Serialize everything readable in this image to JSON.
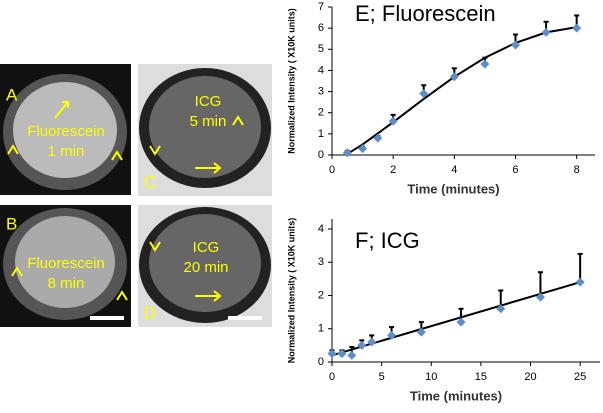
{
  "panels": [
    {
      "label": "A",
      "text": [
        "Fluorescein",
        "1 min"
      ]
    },
    {
      "label": "B",
      "text": [
        "Fluorescein",
        "8 min"
      ]
    },
    {
      "label": "C",
      "text": [
        "ICG",
        "5 min"
      ]
    },
    {
      "label": "D",
      "text": [
        "ICG",
        "20 min"
      ]
    }
  ],
  "chart_data": [
    {
      "type": "scatter",
      "title": "E; Fluorescein",
      "x_label": "Time (minutes)",
      "y_label": "Normalized Intensity ( X10K units)",
      "x": [
        0.5,
        1,
        1.5,
        2,
        3,
        4,
        5,
        6,
        7,
        8
      ],
      "values": [
        0.1,
        0.3,
        0.8,
        1.6,
        2.9,
        3.7,
        4.3,
        5.2,
        5.8,
        6.0
      ],
      "errors": [
        0.1,
        0.1,
        0.1,
        0.3,
        0.4,
        0.4,
        0.3,
        0.5,
        0.5,
        0.6
      ],
      "color": "#5b8fcc",
      "fit_color": "#000000",
      "fit": {
        "x": [
          0.5,
          1,
          2,
          3,
          4,
          5,
          6,
          7,
          8
        ],
        "values": [
          0.05,
          0.5,
          1.55,
          2.65,
          3.7,
          4.6,
          5.3,
          5.8,
          6.05
        ]
      },
      "xlim": [
        0,
        8.6
      ],
      "xticks": [
        0,
        2,
        4,
        6,
        8
      ],
      "ylim": [
        0,
        7
      ],
      "yticks": [
        0,
        1,
        2,
        3,
        4,
        5,
        6,
        7
      ]
    },
    {
      "type": "scatter",
      "title": "F; ICG",
      "x_label": "Time (minutes)",
      "y_label": "Normalized Intensity ( X10K units)",
      "x": [
        0,
        1,
        2,
        3,
        4,
        6,
        9,
        13,
        17,
        21,
        25
      ],
      "values": [
        0.25,
        0.25,
        0.2,
        0.5,
        0.6,
        0.8,
        0.9,
        1.2,
        1.6,
        1.95,
        2.4
      ],
      "errors": [
        0.1,
        0.1,
        0.25,
        0.15,
        0.2,
        0.25,
        0.3,
        0.4,
        0.55,
        0.75,
        0.85
      ],
      "color": "#5b8fcc",
      "fit_color": "#000000",
      "fit": {
        "x": [
          0,
          25
        ],
        "values": [
          0.2,
          2.4
        ]
      },
      "xlim": [
        0,
        27
      ],
      "xticks": [
        0,
        5,
        10,
        15,
        20,
        25
      ],
      "ylim": [
        0,
        4.3
      ],
      "yticks": [
        0,
        1,
        2,
        3,
        4
      ]
    }
  ]
}
